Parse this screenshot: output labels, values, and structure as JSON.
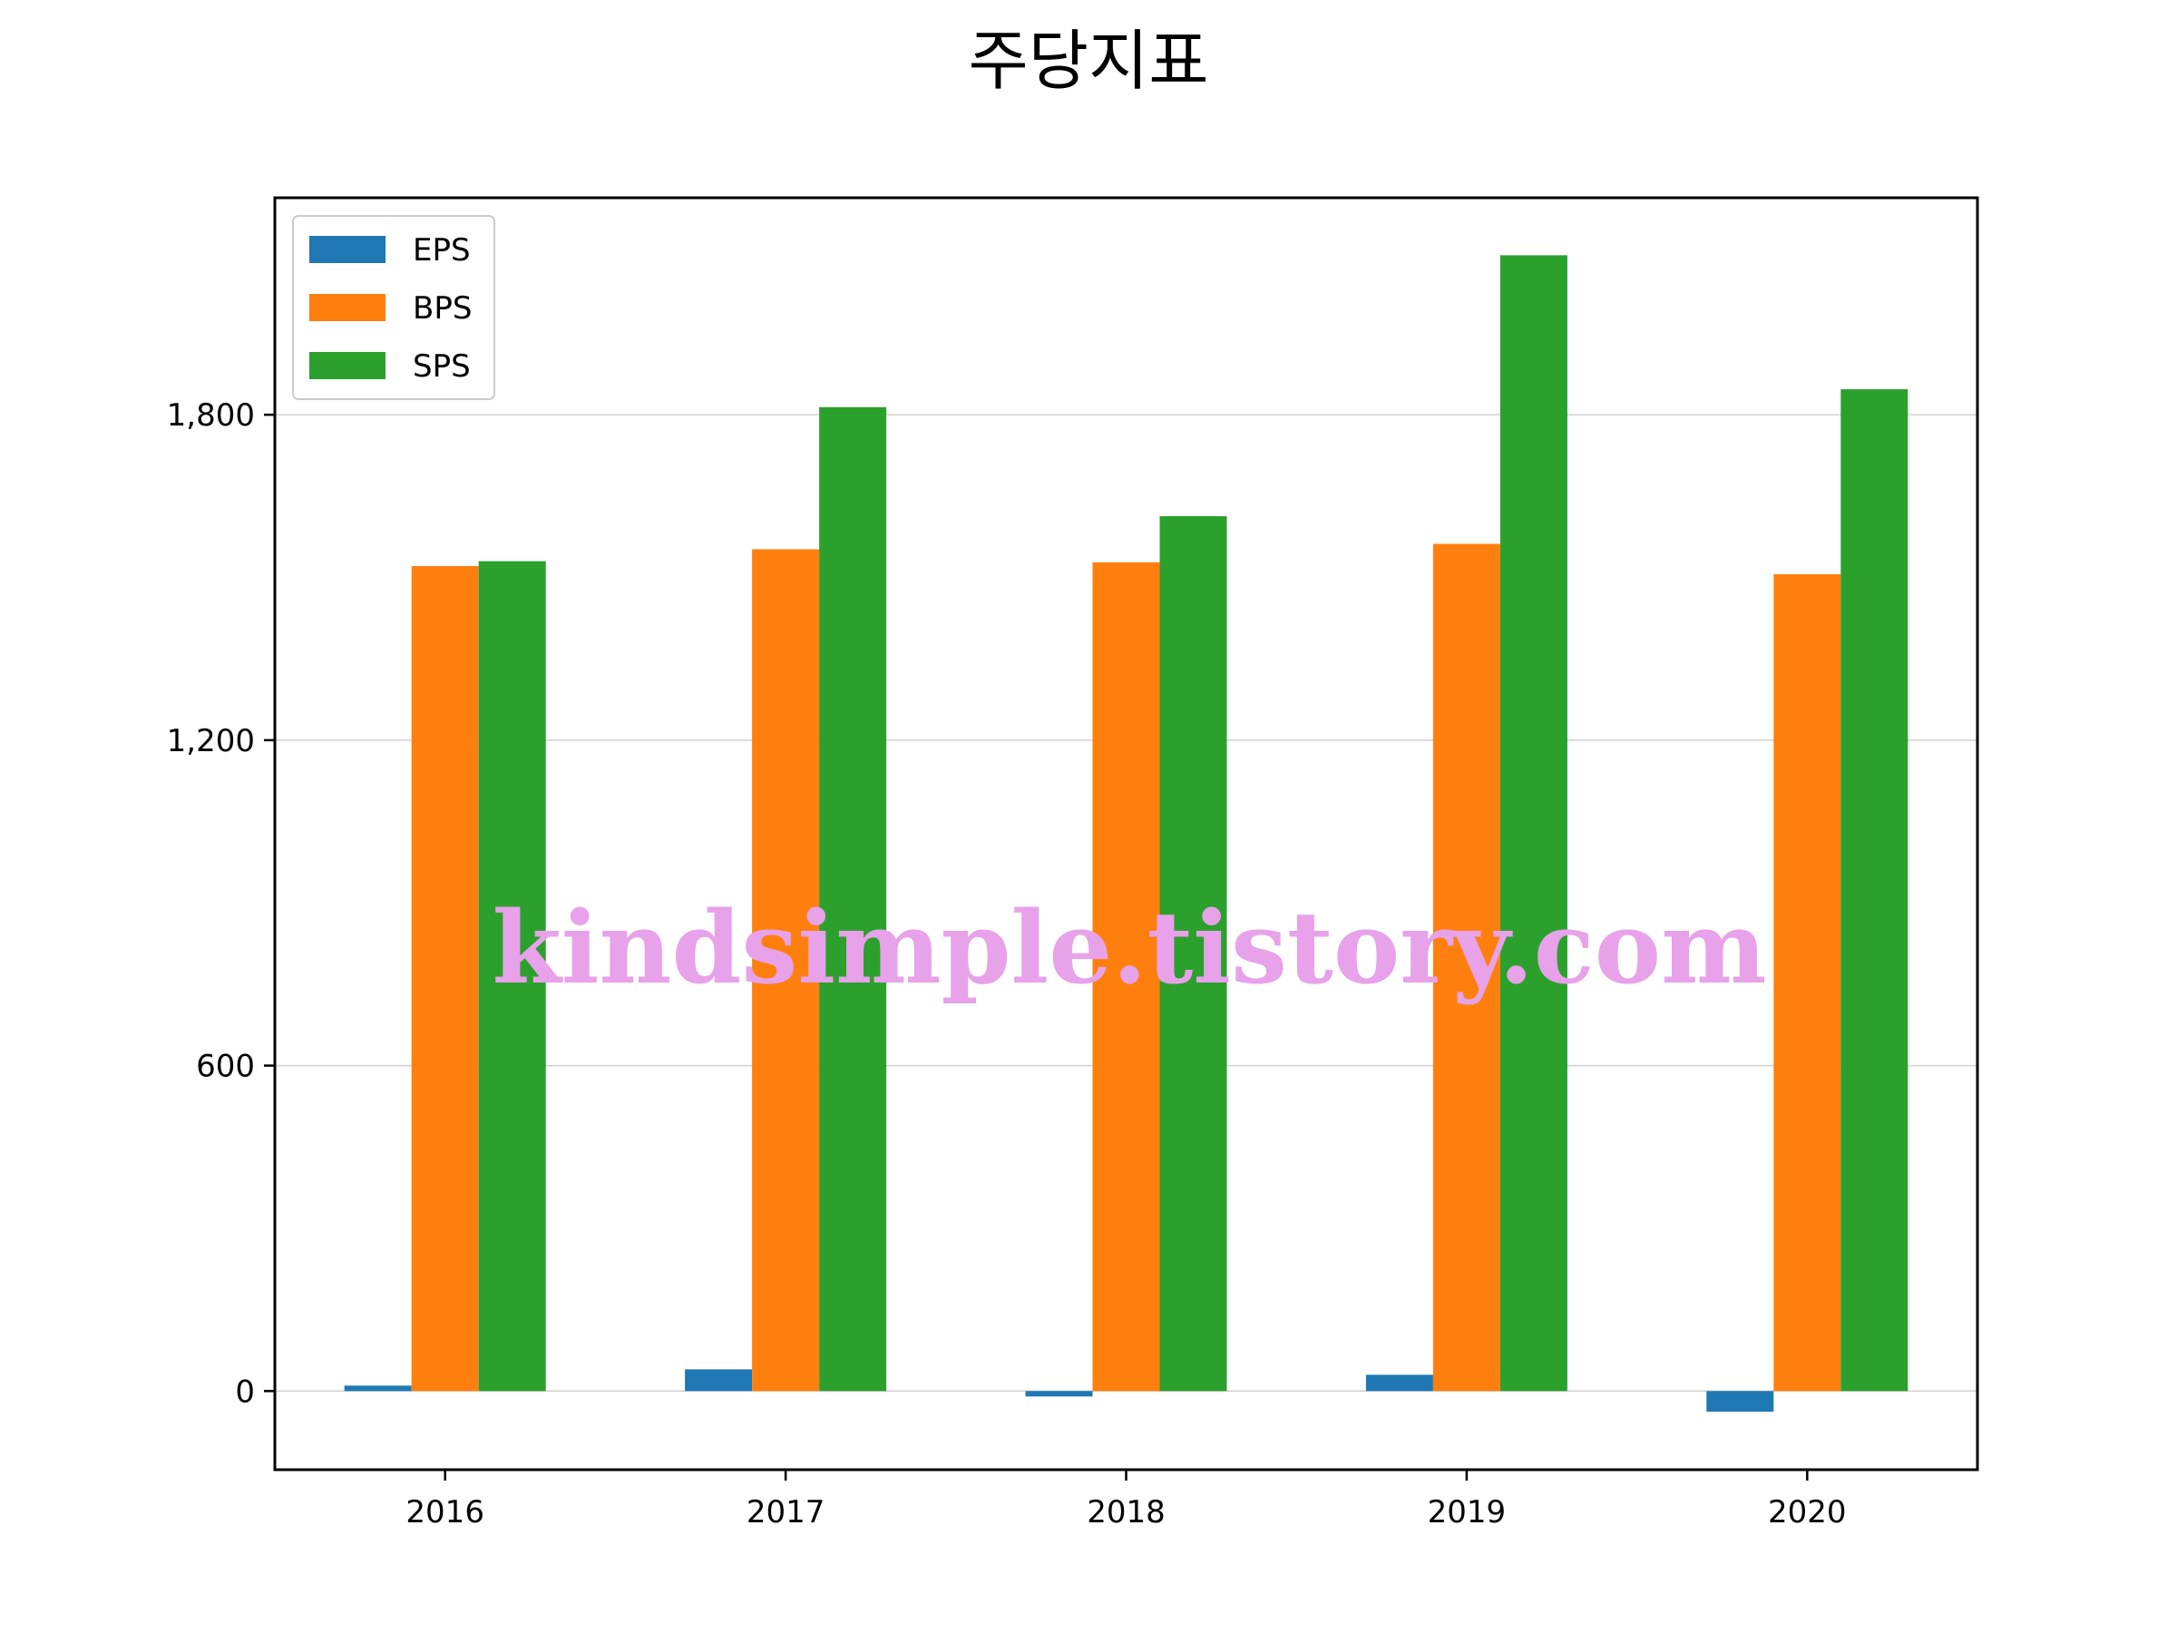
{
  "chart_data": {
    "type": "bar",
    "title": "주당지표",
    "xlabel": "",
    "ylabel": "",
    "categories": [
      "2016",
      "2017",
      "2018",
      "2019",
      "2020"
    ],
    "series": [
      {
        "name": "EPS",
        "color": "#1f77b4",
        "values": [
          10,
          40,
          -10,
          30,
          -38
        ]
      },
      {
        "name": "BPS",
        "color": "#ff7f0e",
        "values": [
          1521,
          1552,
          1528,
          1562,
          1506
        ]
      },
      {
        "name": "SPS",
        "color": "#2ca02c",
        "values": [
          1530,
          1814,
          1613,
          2094,
          1847
        ]
      }
    ],
    "ylim": [
      -145,
      2200
    ],
    "yticks": [
      0,
      600,
      1200,
      1800
    ],
    "ytick_labels": [
      "0",
      "600",
      "1,200",
      "1,800"
    ],
    "grid": "y",
    "legend_position": "top-left",
    "watermark": "kindsimple.tistory.com"
  }
}
